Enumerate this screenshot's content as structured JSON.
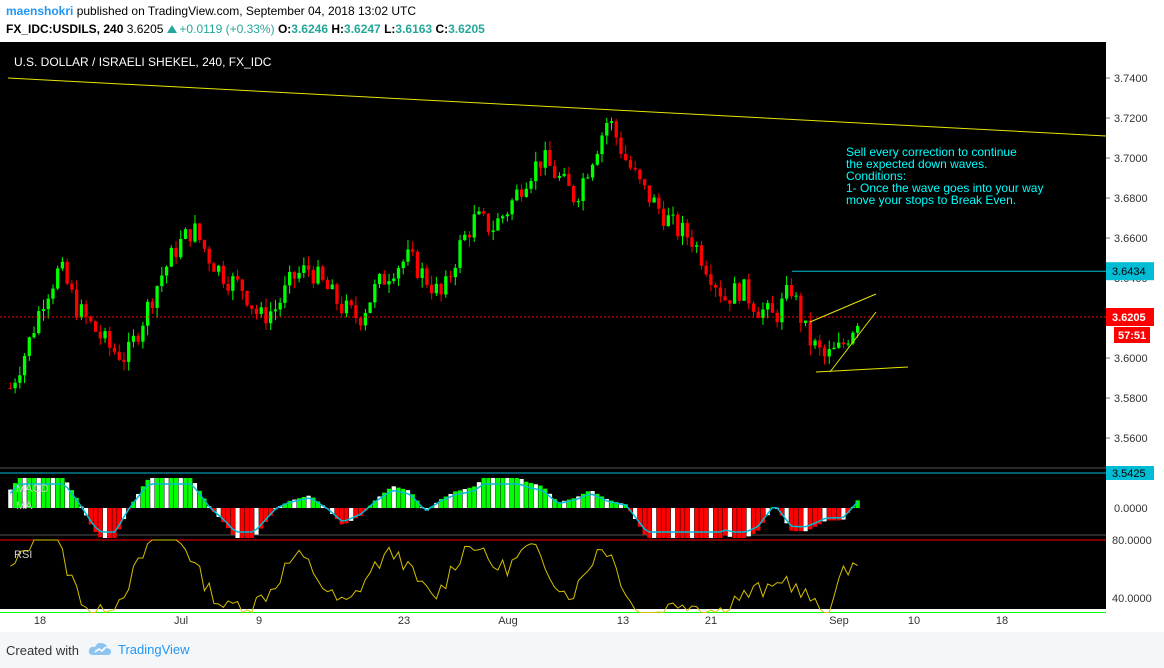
{
  "header": {
    "user": "maenshokri",
    "published_text": " published on TradingView.com, September 04, 2018 13:02 UTC",
    "symbol": "FX_IDC:USDILS, 240",
    "price": "3.6205",
    "change": "+0.0119 (+0.33%)",
    "o_label": "O:",
    "o_val": "3.6246",
    "h_label": "H:",
    "h_val": "3.6247",
    "l_label": "L:",
    "l_val": "3.6163",
    "c_label": "C:",
    "c_val": "3.6205"
  },
  "footer": {
    "created": "Created with",
    "brand": "TradingView",
    "logo_icon": "tradingview-cloud-icon"
  },
  "colors": {
    "bg": "#000000",
    "up": "#26a69a",
    "bull_candle": "#00ff00",
    "bear_candle": "#ff0000",
    "trend_line": "#e6e600",
    "level_line": "#00bcd4",
    "current_price": "#ff0000",
    "annotation": "#00ffff",
    "rsi_line": "#d4c000",
    "macd_signal": "#00bcd4"
  },
  "chart_data": [
    {
      "type": "candlestick",
      "title": "U.S. DOLLAR / ISRAELI SHEKEL, 240, FX_IDC",
      "ylim": [
        3.54,
        3.75
      ],
      "y_ticks": [
        "3.7400",
        "3.7200",
        "3.7000",
        "3.6800",
        "3.6600",
        "3.6400",
        "3.6200",
        "3.6000",
        "3.5800",
        "3.5600"
      ],
      "x_ticks": [
        "18",
        "Jul",
        "9",
        "23",
        "Aug",
        "13",
        "21",
        "Sep",
        "10",
        "18"
      ],
      "approx_closes": [
        3.585,
        3.605,
        3.63,
        3.645,
        3.625,
        3.615,
        3.605,
        3.6,
        3.62,
        3.64,
        3.655,
        3.665,
        3.65,
        3.64,
        3.635,
        3.62,
        3.625,
        3.64,
        3.645,
        3.635,
        3.625,
        3.62,
        3.635,
        3.645,
        3.65,
        3.64,
        3.63,
        3.655,
        3.67,
        3.665,
        3.675,
        3.69,
        3.7,
        3.69,
        3.68,
        3.7,
        3.72,
        3.7,
        3.685,
        3.675,
        3.665,
        3.66,
        3.645,
        3.63,
        3.635,
        3.625,
        3.62,
        3.635,
        3.61,
        3.6,
        3.605,
        3.62
      ],
      "price_labels": [
        {
          "text": "3.6434",
          "value": 3.6434,
          "kind": "level"
        },
        {
          "text": "3.6205",
          "value": 3.6205,
          "kind": "last"
        },
        {
          "text": "57:51",
          "kind": "countdown"
        },
        {
          "text": "3.5425",
          "value": 3.5425,
          "kind": "level"
        }
      ],
      "annotation": [
        "Sell every correction to continue",
        "the expected down waves.",
        "Conditions:",
        "1- Once the wave goes into your way",
        "move your stops to Break Even."
      ]
    },
    {
      "type": "histogram",
      "title": "MACD",
      "series_label": "MA",
      "y_ticks": [
        "0.0000"
      ]
    },
    {
      "type": "line",
      "title": "RSI",
      "y_ticks": [
        "80.0000",
        "40.0000"
      ],
      "levels": [
        80,
        30
      ]
    }
  ]
}
